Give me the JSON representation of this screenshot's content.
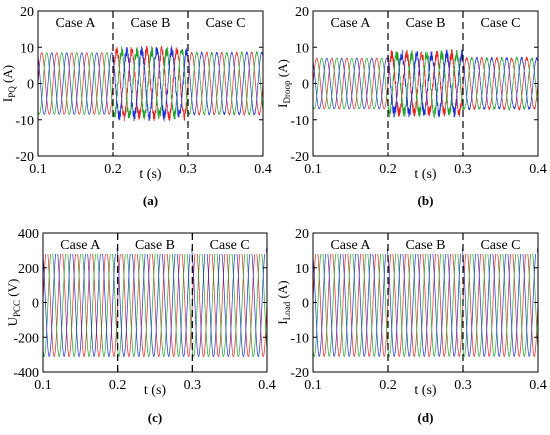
{
  "chart_data": [
    {
      "type": "line",
      "panel": "(a)",
      "ylabel": "I_{PQ} (A)",
      "ylabel_main": "I",
      "ylabel_sub": "PQ",
      "ylabel_unit": " (A)",
      "xlabel": "t (s)",
      "xlim": [
        0.1,
        0.4
      ],
      "ylim": [
        -20,
        20
      ],
      "xticks": [
        "0.1",
        "0.2",
        "0.3",
        "0.4"
      ],
      "yticks": [
        "20",
        "10",
        "0",
        "-10",
        "-20"
      ],
      "xticks_val": [
        0.1,
        0.2,
        0.3,
        0.4
      ],
      "yticks_val": [
        20,
        10,
        0,
        -10,
        -20
      ],
      "cases": [
        "Case A",
        "Case B",
        "Case C"
      ],
      "case_boundaries": [
        0.2,
        0.3
      ],
      "waveform": {
        "frequency_hz": 50,
        "phases": 3
      },
      "segments": [
        {
          "case": "Case A",
          "t_start": 0.1,
          "t_end": 0.2,
          "amplitude": 8.5,
          "noise": 0
        },
        {
          "case": "Case B",
          "t_start": 0.2,
          "t_end": 0.3,
          "amplitude": 9,
          "noise": 1.5
        },
        {
          "case": "Case C",
          "t_start": 0.3,
          "t_end": 0.4,
          "amplitude": 8.5,
          "noise": 0.3
        }
      ]
    },
    {
      "type": "line",
      "panel": "(b)",
      "ylabel": "I_{Droop} (A)",
      "ylabel_main": "I",
      "ylabel_sub": "Droop",
      "ylabel_unit": " (A)",
      "xlabel": "t (s)",
      "xlim": [
        0.1,
        0.4
      ],
      "ylim": [
        -20,
        20
      ],
      "xticks": [
        "0.1",
        "0.2",
        "0.3",
        "0.4"
      ],
      "yticks": [
        "20",
        "10",
        "0",
        "-10",
        "-20"
      ],
      "xticks_val": [
        0.1,
        0.2,
        0.3,
        0.4
      ],
      "yticks_val": [
        20,
        10,
        0,
        -10,
        -20
      ],
      "cases": [
        "Case A",
        "Case B",
        "Case C"
      ],
      "case_boundaries": [
        0.2,
        0.3
      ],
      "waveform": {
        "frequency_hz": 50,
        "phases": 3
      },
      "segments": [
        {
          "case": "Case A",
          "t_start": 0.1,
          "t_end": 0.2,
          "amplitude": 7,
          "noise": 0
        },
        {
          "case": "Case B",
          "t_start": 0.2,
          "t_end": 0.3,
          "amplitude": 8,
          "noise": 1.5
        },
        {
          "case": "Case C",
          "t_start": 0.3,
          "t_end": 0.4,
          "amplitude": 7,
          "noise": 0.4
        }
      ]
    },
    {
      "type": "line",
      "panel": "(c)",
      "ylabel": "U_{PCC} (V)",
      "ylabel_main": "U",
      "ylabel_sub": "PCC",
      "ylabel_unit": " (V)",
      "xlabel": "t (s)",
      "xlim": [
        0.1,
        0.4
      ],
      "ylim": [
        -400,
        400
      ],
      "xticks": [
        "0.1",
        "0.2",
        "0.3",
        "0.4"
      ],
      "yticks": [
        "400",
        "200",
        "0",
        "-200",
        "-400"
      ],
      "xticks_val": [
        0.1,
        0.2,
        0.3,
        0.4
      ],
      "yticks_val": [
        400,
        200,
        0,
        -200,
        -400
      ],
      "cases": [
        "Case A",
        "Case B",
        "Case C"
      ],
      "case_boundaries": [
        0.2,
        0.3
      ],
      "waveform": {
        "frequency_hz": 50,
        "phases": 3
      },
      "segments": [
        {
          "case": "Case A",
          "t_start": 0.1,
          "t_end": 0.2,
          "amplitude": 311,
          "noise": 0
        },
        {
          "case": "Case B",
          "t_start": 0.2,
          "t_end": 0.3,
          "amplitude": 311,
          "noise": 0
        },
        {
          "case": "Case C",
          "t_start": 0.3,
          "t_end": 0.4,
          "amplitude": 311,
          "noise": 0
        }
      ]
    },
    {
      "type": "line",
      "panel": "(d)",
      "ylabel": "I_{Load} (A)",
      "ylabel_main": "I",
      "ylabel_sub": "Load",
      "ylabel_unit": " (A)",
      "xlabel": "t (s)",
      "xlim": [
        0.1,
        0.4
      ],
      "ylim": [
        -20,
        20
      ],
      "xticks": [
        "0.1",
        "0.2",
        "0.3",
        "0.4"
      ],
      "yticks": [
        "20",
        "10",
        "0",
        "-10",
        "-20"
      ],
      "xticks_val": [
        0.1,
        0.2,
        0.3,
        0.4
      ],
      "yticks_val": [
        20,
        10,
        0,
        -10,
        -20
      ],
      "cases": [
        "Case A",
        "Case B",
        "Case C"
      ],
      "case_boundaries": [
        0.2,
        0.3
      ],
      "waveform": {
        "frequency_hz": 50,
        "phases": 3
      },
      "segments": [
        {
          "case": "Case A",
          "t_start": 0.1,
          "t_end": 0.2,
          "amplitude": 15.5,
          "noise": 0
        },
        {
          "case": "Case B",
          "t_start": 0.2,
          "t_end": 0.3,
          "amplitude": 15.5,
          "noise": 0
        },
        {
          "case": "Case C",
          "t_start": 0.3,
          "t_end": 0.4,
          "amplitude": 15.5,
          "noise": 0
        }
      ]
    }
  ],
  "colors": {
    "phase_a": "#e8221f",
    "phase_b": "#1fa32a",
    "phase_c": "#1f2fd6",
    "axis": "#000000"
  }
}
